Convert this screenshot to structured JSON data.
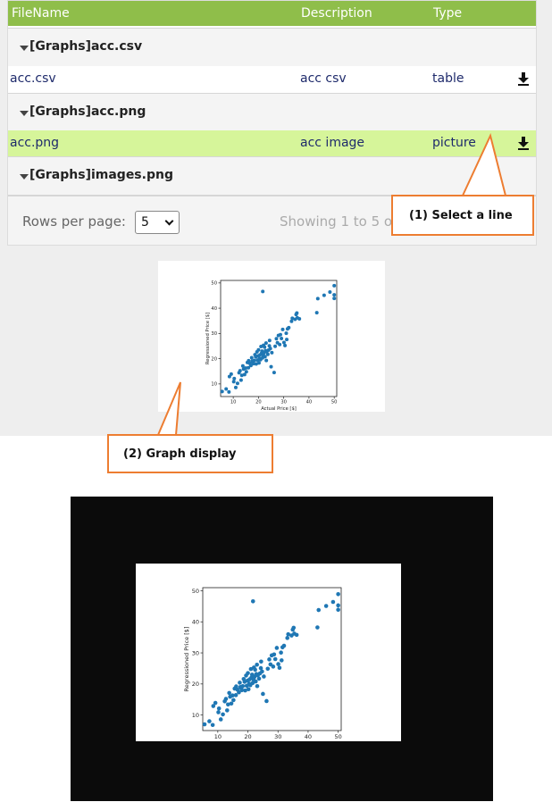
{
  "table": {
    "headers": [
      "FileName",
      "Description",
      "Type"
    ],
    "groups": [
      {
        "label": "[Graphs]acc.csv",
        "row": {
          "file": "acc.csv",
          "description": "acc csv",
          "type": "table"
        }
      },
      {
        "label": "[Graphs]acc.png",
        "row": {
          "file": "acc.png",
          "description": "acc image",
          "type": "picture",
          "selected": true
        }
      },
      {
        "label": "[Graphs]images.png"
      }
    ],
    "footer": {
      "rows_per_page_label": "Rows per page:",
      "rows_per_page_value": "5",
      "showing_text": "Showing 1 to 5 o"
    }
  },
  "callouts": {
    "select_line": "(1) Select a line",
    "graph_display": "(2) Graph display"
  },
  "icons": {
    "download": "download-icon",
    "expand": "caret-down-icon",
    "select": "chevron-down-icon"
  },
  "colors": {
    "header": "#8fbe4a",
    "selected_row": "#d6f59a",
    "callout_border": "#ed7d31",
    "point": "#1f77b4",
    "modal_bg": "#0b0b0b"
  },
  "chart_data": {
    "type": "scatter",
    "xlabel": "Actual Price [$]",
    "ylabel": "Regressioned Price [$]",
    "xlim": [
      5,
      51
    ],
    "ylim": [
      5,
      51
    ],
    "xticks": [
      10,
      20,
      30,
      40,
      50
    ],
    "yticks": [
      10,
      20,
      30,
      40,
      50
    ],
    "x": [
      5.6,
      7.2,
      8.3,
      8.5,
      9.2,
      10.2,
      10.4,
      11.0,
      11.7,
      12.3,
      12.7,
      13.1,
      13.4,
      13.8,
      14.1,
      14.5,
      14.9,
      15.2,
      15.6,
      16.0,
      16.1,
      16.5,
      17.0,
      17.3,
      17.5,
      17.8,
      18.0,
      18.3,
      18.6,
      18.9,
      19.1,
      19.4,
      19.6,
      19.9,
      20.0,
      20.2,
      20.4,
      20.6,
      20.8,
      21.0,
      21.2,
      21.4,
      21.6,
      21.7,
      21.9,
      22.0,
      22.2,
      22.4,
      22.6,
      22.8,
      23.0,
      23.1,
      23.3,
      23.7,
      24.0,
      24.3,
      24.4,
      24.7,
      25.0,
      25.3,
      26.2,
      26.6,
      27.1,
      27.5,
      27.9,
      28.4,
      28.7,
      29.1,
      29.6,
      30.1,
      30.5,
      31.0,
      31.2,
      31.5,
      32.0,
      33.1,
      33.4,
      34.5,
      34.9,
      35.2,
      35.4,
      36.2,
      43.1,
      43.5,
      46.0,
      48.3,
      50.0,
      50.0,
      50.0
    ],
    "y": [
      7.0,
      8.0,
      6.8,
      12.9,
      13.9,
      10.9,
      12.1,
      8.6,
      10.2,
      14.4,
      15.2,
      11.5,
      13.4,
      17.1,
      15.9,
      13.7,
      16.3,
      14.8,
      18.5,
      16.4,
      19.2,
      18.2,
      17.3,
      20.4,
      19.0,
      18.5,
      18.0,
      19.3,
      21.6,
      20.7,
      17.9,
      22.7,
      19.4,
      21.1,
      23.5,
      18.3,
      20.1,
      21.5,
      19.6,
      24.8,
      22.1,
      23.0,
      20.3,
      46.6,
      21.4,
      25.3,
      22.3,
      24.6,
      20.8,
      23.2,
      26.2,
      19.3,
      22.8,
      21.7,
      23.4,
      25.1,
      27.2,
      24.0,
      16.8,
      22.4,
      14.5,
      24.9,
      27.9,
      26.3,
      29.2,
      25.6,
      29.5,
      28.0,
      31.6,
      26.4,
      25.2,
      30.1,
      27.6,
      31.8,
      32.3,
      34.8,
      36.0,
      35.6,
      37.5,
      38.1,
      36.2,
      35.8,
      38.2,
      43.8,
      45.1,
      46.4,
      48.9,
      45.3,
      43.9
    ],
    "grid": false
  }
}
